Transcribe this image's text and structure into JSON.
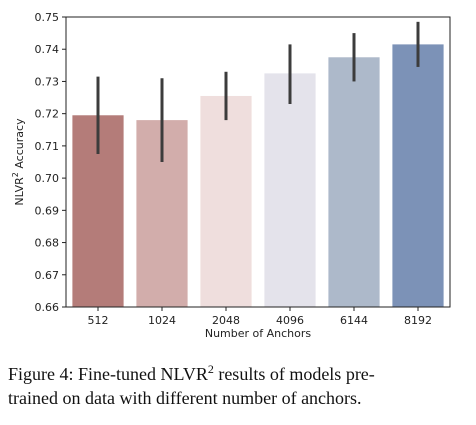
{
  "chart_data": {
    "type": "bar",
    "categories": [
      "512",
      "1024",
      "2048",
      "4096",
      "6144",
      "8192"
    ],
    "values": [
      0.7195,
      0.718,
      0.7255,
      0.7325,
      0.7375,
      0.7415
    ],
    "error_low": [
      0.7075,
      0.705,
      0.718,
      0.723,
      0.73,
      0.7345
    ],
    "error_high": [
      0.7315,
      0.731,
      0.733,
      0.7415,
      0.745,
      0.7485
    ],
    "bar_colors": [
      "#b47c79",
      "#d2adab",
      "#efdedd",
      "#e4e3eb",
      "#adb9ca",
      "#7c92b7"
    ],
    "error_color": "#3c3c3c",
    "title": "",
    "xlabel": "Number of Anchors",
    "ylabel_main": "NLVR",
    "ylabel_sup": "2",
    "ylabel_rest": " Accuracy",
    "ylim": [
      0.66,
      0.75
    ],
    "yticks": [
      "0.66",
      "0.67",
      "0.68",
      "0.69",
      "0.70",
      "0.71",
      "0.72",
      "0.73",
      "0.74",
      "0.75"
    ],
    "grid": false,
    "legend": "none"
  },
  "caption": {
    "line1_prefix": "Figure 4:  Fine-tuned NLVR",
    "line1_sup": "2",
    "line1_suffix": " results of models pre-",
    "line2": "trained on data with different number of anchors."
  }
}
